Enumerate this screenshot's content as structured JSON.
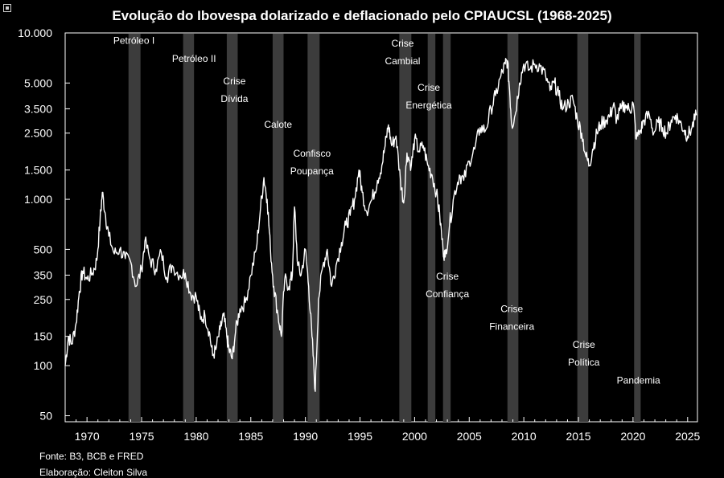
{
  "chart_data": {
    "type": "line",
    "title": "Evolução do Ibovespa dolarizado e deflacionado pelo CPIAUCSL (1968-2025)",
    "scale": "log",
    "ylim": [
      46,
      10000
    ],
    "xlim": [
      1968,
      2025.9
    ],
    "y_ticks": [
      {
        "v": 10000,
        "label": "10.000"
      },
      {
        "v": 5000,
        "label": "5.000"
      },
      {
        "v": 3500,
        "label": "3.500"
      },
      {
        "v": 2500,
        "label": "2.500"
      },
      {
        "v": 1500,
        "label": "1.500"
      },
      {
        "v": 1000,
        "label": "1.000"
      },
      {
        "v": 500,
        "label": "500"
      },
      {
        "v": 350,
        "label": "350"
      },
      {
        "v": 250,
        "label": "250"
      },
      {
        "v": 150,
        "label": "150"
      },
      {
        "v": 100,
        "label": "100"
      },
      {
        "v": 50,
        "label": "50"
      }
    ],
    "x_ticks": [
      1970,
      1975,
      1980,
      1985,
      1990,
      1995,
      2000,
      2005,
      2010,
      2015,
      2020,
      2025
    ],
    "grid": false,
    "series": [
      {
        "name": "Ibovespa dolarizado e deflacionado",
        "points": [
          [
            1968.0,
            100
          ],
          [
            1968.3,
            150
          ],
          [
            1968.6,
            135
          ],
          [
            1969.0,
            180
          ],
          [
            1969.3,
            280
          ],
          [
            1969.6,
            370
          ],
          [
            1970.0,
            330
          ],
          [
            1970.5,
            360
          ],
          [
            1970.9,
            430
          ],
          [
            1971.2,
            750
          ],
          [
            1971.4,
            1100
          ],
          [
            1971.7,
            800
          ],
          [
            1972.0,
            600
          ],
          [
            1972.5,
            470
          ],
          [
            1973.0,
            500
          ],
          [
            1973.5,
            440
          ],
          [
            1974.0,
            420
          ],
          [
            1974.5,
            300
          ],
          [
            1975.0,
            380
          ],
          [
            1975.3,
            560
          ],
          [
            1975.8,
            430
          ],
          [
            1976.3,
            380
          ],
          [
            1976.8,
            480
          ],
          [
            1977.3,
            340
          ],
          [
            1977.8,
            400
          ],
          [
            1978.5,
            350
          ],
          [
            1979.0,
            360
          ],
          [
            1979.5,
            270
          ],
          [
            1980.0,
            260
          ],
          [
            1980.4,
            190
          ],
          [
            1980.8,
            200
          ],
          [
            1981.2,
            160
          ],
          [
            1981.5,
            115
          ],
          [
            1981.8,
            125
          ],
          [
            1982.2,
            165
          ],
          [
            1982.5,
            200
          ],
          [
            1982.8,
            150
          ],
          [
            1983.0,
            125
          ],
          [
            1983.3,
            110
          ],
          [
            1983.6,
            160
          ],
          [
            1984.0,
            220
          ],
          [
            1984.5,
            240
          ],
          [
            1985.0,
            350
          ],
          [
            1985.5,
            500
          ],
          [
            1985.9,
            900
          ],
          [
            1986.2,
            1350
          ],
          [
            1986.5,
            1000
          ],
          [
            1986.8,
            500
          ],
          [
            1987.1,
            300
          ],
          [
            1987.5,
            200
          ],
          [
            1987.8,
            150
          ],
          [
            1988.1,
            330
          ],
          [
            1988.5,
            300
          ],
          [
            1988.8,
            350
          ],
          [
            1989.0,
            900
          ],
          [
            1989.3,
            400
          ],
          [
            1989.6,
            350
          ],
          [
            1990.0,
            500
          ],
          [
            1990.3,
            300
          ],
          [
            1990.6,
            150
          ],
          [
            1990.9,
            70
          ],
          [
            1991.2,
            250
          ],
          [
            1991.6,
            400
          ],
          [
            1992.0,
            500
          ],
          [
            1992.4,
            300
          ],
          [
            1992.8,
            400
          ],
          [
            1993.3,
            550
          ],
          [
            1993.7,
            700
          ],
          [
            1994.1,
            800
          ],
          [
            1994.5,
            1000
          ],
          [
            1994.9,
            1500
          ],
          [
            1995.2,
            1100
          ],
          [
            1995.6,
            850
          ],
          [
            1996.1,
            1000
          ],
          [
            1996.6,
            1300
          ],
          [
            1997.0,
            1600
          ],
          [
            1997.3,
            2100
          ],
          [
            1997.6,
            2800
          ],
          [
            1997.9,
            2100
          ],
          [
            1998.3,
            2400
          ],
          [
            1998.7,
            1300
          ],
          [
            1999.0,
            950
          ],
          [
            1999.3,
            1900
          ],
          [
            1999.7,
            1600
          ],
          [
            2000.0,
            2300
          ],
          [
            2000.4,
            1950
          ],
          [
            2000.8,
            2100
          ],
          [
            2001.2,
            1600
          ],
          [
            2001.6,
            1400
          ],
          [
            2002.0,
            1100
          ],
          [
            2002.3,
            800
          ],
          [
            2002.6,
            500
          ],
          [
            2002.8,
            450
          ],
          [
            2003.2,
            700
          ],
          [
            2003.6,
            1050
          ],
          [
            2004.1,
            1400
          ],
          [
            2004.5,
            1300
          ],
          [
            2005.0,
            1700
          ],
          [
            2005.5,
            2000
          ],
          [
            2006.0,
            2700
          ],
          [
            2006.5,
            2600
          ],
          [
            2007.0,
            3500
          ],
          [
            2007.4,
            4200
          ],
          [
            2007.9,
            5500
          ],
          [
            2008.3,
            6500
          ],
          [
            2008.5,
            6800
          ],
          [
            2008.7,
            4500
          ],
          [
            2008.9,
            2800
          ],
          [
            2009.2,
            3200
          ],
          [
            2009.6,
            5000
          ],
          [
            2010.0,
            6500
          ],
          [
            2010.5,
            6000
          ],
          [
            2011.0,
            6500
          ],
          [
            2011.5,
            6300
          ],
          [
            2012.0,
            5500
          ],
          [
            2012.4,
            4500
          ],
          [
            2012.8,
            5000
          ],
          [
            2013.2,
            4200
          ],
          [
            2013.6,
            3500
          ],
          [
            2014.1,
            3800
          ],
          [
            2014.5,
            4000
          ],
          [
            2014.9,
            3000
          ],
          [
            2015.3,
            2500
          ],
          [
            2015.7,
            1800
          ],
          [
            2016.0,
            1600
          ],
          [
            2016.3,
            2000
          ],
          [
            2016.7,
            2500
          ],
          [
            2017.0,
            2800
          ],
          [
            2017.5,
            3000
          ],
          [
            2017.9,
            3200
          ],
          [
            2018.2,
            3700
          ],
          [
            2018.5,
            3000
          ],
          [
            2018.9,
            3500
          ],
          [
            2019.3,
            3700
          ],
          [
            2019.7,
            3400
          ],
          [
            2020.0,
            3800
          ],
          [
            2020.3,
            2300
          ],
          [
            2020.7,
            2600
          ],
          [
            2021.0,
            3000
          ],
          [
            2021.5,
            3200
          ],
          [
            2021.9,
            2500
          ],
          [
            2022.3,
            2900
          ],
          [
            2022.7,
            2700
          ],
          [
            2023.1,
            2500
          ],
          [
            2023.5,
            3000
          ],
          [
            2023.9,
            3200
          ],
          [
            2024.3,
            2900
          ],
          [
            2024.7,
            2600
          ],
          [
            2025.0,
            2400
          ],
          [
            2025.4,
            2700
          ],
          [
            2025.8,
            3200
          ]
        ]
      }
    ],
    "recession_bands": [
      [
        1973.8,
        1974.9
      ],
      [
        1978.8,
        1979.8
      ],
      [
        1982.8,
        1983.8
      ],
      [
        1987.0,
        1988.0
      ],
      [
        1990.2,
        1991.3
      ],
      [
        1998.6,
        1999.7
      ],
      [
        2001.2,
        2001.9
      ],
      [
        2002.6,
        2003.3
      ],
      [
        2008.5,
        2009.5
      ],
      [
        2014.9,
        2015.9
      ],
      [
        2020.1,
        2020.7
      ]
    ],
    "annotations": [
      {
        "id": "petroleo1",
        "lines": [
          "Petróleo I"
        ],
        "x": 1974.3,
        "y": 8600
      },
      {
        "id": "petroleo2",
        "lines": [
          "Petróleo II"
        ],
        "x": 1979.8,
        "y": 6700
      },
      {
        "id": "crise-divida",
        "lines": [
          "Crise",
          "Dívida"
        ],
        "x": 1983.5,
        "y": 4900
      },
      {
        "id": "calote",
        "lines": [
          "Calote"
        ],
        "x": 1987.5,
        "y": 2700
      },
      {
        "id": "confisco",
        "lines": [
          "Confisco",
          "Poupança"
        ],
        "x": 1990.6,
        "y": 1800
      },
      {
        "id": "crise-cambial",
        "lines": [
          "Crise",
          "Cambial"
        ],
        "x": 1998.9,
        "y": 8300
      },
      {
        "id": "crise-energetica",
        "lines": [
          "Crise",
          "Energética"
        ],
        "x": 2001.3,
        "y": 4500
      },
      {
        "id": "crise-confianca",
        "lines": [
          "Crise",
          "Confiança"
        ],
        "x": 2003.0,
        "y": 330
      },
      {
        "id": "crise-financeira",
        "lines": [
          "Crise",
          "Financeira"
        ],
        "x": 2008.9,
        "y": 210
      },
      {
        "id": "crise-politica",
        "lines": [
          "Crise",
          "Política"
        ],
        "x": 2015.5,
        "y": 128
      },
      {
        "id": "pandemia",
        "lines": [
          "Pandemia"
        ],
        "x": 2020.5,
        "y": 78
      }
    ]
  },
  "footer": {
    "source": "Fonte: B3, BCB e FRED",
    "author": "Elaboração: Cleiton Silva"
  }
}
